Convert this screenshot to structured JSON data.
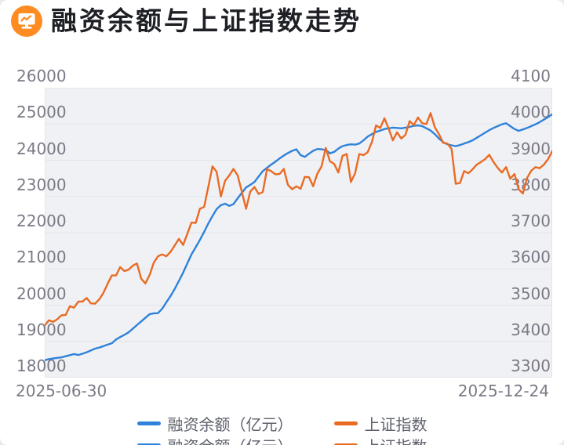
{
  "header": {
    "title": "融资余额与上证指数走势",
    "icon": "chart-monitor-icon",
    "icon_color": "#FE8C22"
  },
  "x_axis": {
    "start_label": "2025-06-30",
    "end_label": "2025-12-24"
  },
  "legend": {
    "items": [
      {
        "label": "融资余额（亿元）",
        "color": "#2e82d9"
      },
      {
        "label": "上证指数",
        "color": "#e96b23"
      }
    ]
  },
  "colors": {
    "plot_background": "#f0f1f5",
    "grid_line": "#e3e5ea",
    "axis_label": "#7b7985",
    "title": "#1e2025",
    "legend_text": "#5f626c",
    "blue_line": "#2e82d9",
    "orange_line": "#e96b23"
  },
  "chart_data": {
    "type": "line",
    "title": "融资余额与上证指数走势",
    "x_start": "2025-06-30",
    "x_end": "2025-12-24",
    "grid": true,
    "legend_position": "bottom",
    "left_axis": {
      "min": 18000,
      "max": 26000,
      "ticks": [
        26000,
        25000,
        24000,
        23000,
        22000,
        21000,
        20000,
        19000,
        18000
      ]
    },
    "right_axis": {
      "min": 3300,
      "max": 4100,
      "ticks": [
        4100,
        4000,
        3900,
        3800,
        3700,
        3600,
        3500,
        3400,
        3300
      ]
    },
    "series": [
      {
        "name": "融资余额（亿元）",
        "axis": "left",
        "color": "#2e82d9",
        "values": [
          18480,
          18510,
          18530,
          18545,
          18560,
          18590,
          18620,
          18650,
          18625,
          18660,
          18700,
          18750,
          18800,
          18830,
          18870,
          18910,
          18950,
          19050,
          19120,
          19180,
          19250,
          19350,
          19450,
          19550,
          19650,
          19750,
          19775,
          19780,
          19900,
          20080,
          20250,
          20450,
          20670,
          20900,
          21150,
          21400,
          21600,
          21800,
          22020,
          22250,
          22460,
          22650,
          22760,
          22800,
          22740,
          22790,
          22950,
          23100,
          23250,
          23320,
          23400,
          23550,
          23700,
          23790,
          23880,
          23960,
          24050,
          24130,
          24200,
          24260,
          24300,
          24140,
          24090,
          24180,
          24260,
          24310,
          24300,
          24280,
          24190,
          24230,
          24320,
          24390,
          24420,
          24440,
          24430,
          24460,
          24550,
          24650,
          24720,
          24780,
          24820,
          24860,
          24880,
          24900,
          24890,
          24880,
          24900,
          24920,
          24950,
          24960,
          24940,
          24880,
          24820,
          24720,
          24600,
          24500,
          24440,
          24410,
          24390,
          24420,
          24460,
          24500,
          24550,
          24620,
          24690,
          24760,
          24830,
          24890,
          24940,
          24990,
          25020,
          24940,
          24860,
          24810,
          24850,
          24890,
          24940,
          24990,
          25050,
          25120,
          25190,
          25270
        ]
      },
      {
        "name": "上证指数",
        "axis": "right",
        "color": "#e96b23",
        "values": [
          3444,
          3458,
          3454,
          3461,
          3472,
          3473,
          3497,
          3493,
          3510,
          3510,
          3520,
          3505,
          3504,
          3516,
          3534,
          3559,
          3582,
          3582,
          3605,
          3594,
          3598,
          3609,
          3615,
          3573,
          3560,
          3583,
          3617,
          3635,
          3640,
          3635,
          3647,
          3665,
          3683,
          3666,
          3697,
          3728,
          3727,
          3766,
          3771,
          3826,
          3883,
          3868,
          3800,
          3843,
          3858,
          3876,
          3858,
          3813,
          3766,
          3813,
          3826,
          3807,
          3812,
          3875,
          3870,
          3861,
          3862,
          3876,
          3832,
          3820,
          3828,
          3821,
          3854,
          3853,
          3828,
          3863,
          3883,
          3934,
          3897,
          3890,
          3866,
          3912,
          3917,
          3840,
          3864,
          3917,
          3914,
          3922,
          3950,
          3996,
          3989,
          4016,
          3987,
          3955,
          3977,
          3960,
          3970,
          4008,
          3997,
          4018,
          4002,
          4000,
          4030,
          3991,
          3972,
          3948,
          3946,
          3931,
          3835,
          3837,
          3870,
          3864,
          3875,
          3888,
          3895,
          3903,
          3915,
          3895,
          3879,
          3866,
          3881,
          3849,
          3862,
          3820,
          3808,
          3851,
          3871,
          3881,
          3878,
          3888,
          3903,
          3925
        ]
      }
    ]
  }
}
